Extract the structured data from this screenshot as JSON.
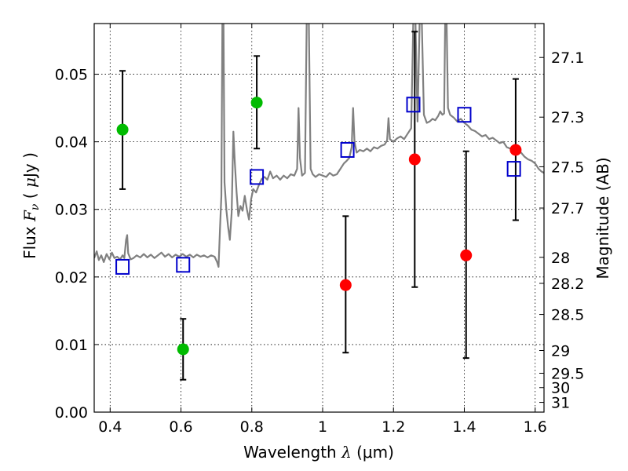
{
  "chart_data": {
    "type": "scatter",
    "title": "",
    "xlabel": "Wavelength  λ (μm)",
    "ylabel": "Flux  Fν  ( μJy )",
    "ylabel_parts": {
      "prefix": "Flux  ",
      "symbol": "F",
      "subscript": "ν",
      "open": "  ( ",
      "unit_sym": "μ",
      "unit": "Jy )"
    },
    "xlabel_parts": {
      "prefix": "Wavelength  ",
      "symbol": "λ",
      "unit": " (μm)"
    },
    "y2label": "Magnitude (AB)",
    "xlim": [
      0.355,
      1.625
    ],
    "ylim": [
      0.0,
      0.0575
    ],
    "grid": true,
    "x_ticks": [
      {
        "v": 0.4,
        "label": "0.4"
      },
      {
        "v": 0.6,
        "label": "0.6"
      },
      {
        "v": 0.8,
        "label": "0.8"
      },
      {
        "v": 1.0,
        "label": "1"
      },
      {
        "v": 1.2,
        "label": "1.2"
      },
      {
        "v": 1.4,
        "label": "1.4"
      },
      {
        "v": 1.6,
        "label": "1.6"
      }
    ],
    "y_ticks": [
      {
        "v": 0.0,
        "label": "0.00"
      },
      {
        "v": 0.01,
        "label": "0.01"
      },
      {
        "v": 0.02,
        "label": "0.02"
      },
      {
        "v": 0.03,
        "label": "0.03"
      },
      {
        "v": 0.04,
        "label": "0.04"
      },
      {
        "v": 0.05,
        "label": "0.05"
      }
    ],
    "mag_ticks": [
      {
        "mag": 27.1,
        "label": "27.1"
      },
      {
        "mag": 27.3,
        "label": "27.3"
      },
      {
        "mag": 27.5,
        "label": "27.5"
      },
      {
        "mag": 27.7,
        "label": "27.7"
      },
      {
        "mag": 28.0,
        "label": "28"
      },
      {
        "mag": 28.2,
        "label": "28.2"
      },
      {
        "mag": 28.5,
        "label": "28.5"
      },
      {
        "mag": 29.0,
        "label": "29"
      },
      {
        "mag": 29.5,
        "label": "29.5"
      },
      {
        "mag": 30.0,
        "label": "30"
      },
      {
        "mag": 31.0,
        "label": "31"
      }
    ],
    "series": [
      {
        "kind": "points-with-errors",
        "color": "#00bb00",
        "points": [
          {
            "x": 0.435,
            "y": 0.0418,
            "lo": 0.033,
            "hi": 0.0505
          },
          {
            "x": 0.606,
            "y": 0.0093,
            "lo": 0.0048,
            "hi": 0.0138
          },
          {
            "x": 0.814,
            "y": 0.0458,
            "lo": 0.039,
            "hi": 0.0527
          }
        ]
      },
      {
        "kind": "points-with-errors",
        "color": "#ff0000",
        "points": [
          {
            "x": 1.065,
            "y": 0.0188,
            "lo": 0.0088,
            "hi": 0.029
          },
          {
            "x": 1.26,
            "y": 0.0374,
            "lo": 0.0185,
            "hi": 0.0563
          },
          {
            "x": 1.405,
            "y": 0.0232,
            "lo": 0.008,
            "hi": 0.0386
          },
          {
            "x": 1.545,
            "y": 0.0388,
            "lo": 0.0284,
            "hi": 0.0493
          }
        ]
      },
      {
        "kind": "open-squares",
        "color": "#0000cc",
        "points": [
          {
            "x": 0.435,
            "y": 0.0215
          },
          {
            "x": 0.606,
            "y": 0.0218
          },
          {
            "x": 0.814,
            "y": 0.0348
          },
          {
            "x": 1.07,
            "y": 0.0388
          },
          {
            "x": 1.256,
            "y": 0.0455
          },
          {
            "x": 1.4,
            "y": 0.044
          },
          {
            "x": 1.54,
            "y": 0.036
          }
        ]
      },
      {
        "kind": "model-spectrum",
        "color": "#808080",
        "points": [
          [
            0.355,
            0.0228
          ],
          [
            0.362,
            0.0238
          ],
          [
            0.368,
            0.0225
          ],
          [
            0.375,
            0.0232
          ],
          [
            0.382,
            0.0222
          ],
          [
            0.39,
            0.0234
          ],
          [
            0.398,
            0.0226
          ],
          [
            0.405,
            0.0236
          ],
          [
            0.412,
            0.0228
          ],
          [
            0.42,
            0.023
          ],
          [
            0.428,
            0.0226
          ],
          [
            0.435,
            0.0232
          ],
          [
            0.44,
            0.0228
          ],
          [
            0.445,
            0.0255
          ],
          [
            0.448,
            0.0262
          ],
          [
            0.451,
            0.0235
          ],
          [
            0.458,
            0.0226
          ],
          [
            0.466,
            0.0228
          ],
          [
            0.475,
            0.0232
          ],
          [
            0.485,
            0.0229
          ],
          [
            0.495,
            0.0234
          ],
          [
            0.505,
            0.0229
          ],
          [
            0.515,
            0.0233
          ],
          [
            0.525,
            0.0228
          ],
          [
            0.535,
            0.0232
          ],
          [
            0.545,
            0.0236
          ],
          [
            0.555,
            0.023
          ],
          [
            0.565,
            0.0234
          ],
          [
            0.575,
            0.0229
          ],
          [
            0.585,
            0.0233
          ],
          [
            0.595,
            0.023
          ],
          [
            0.605,
            0.0234
          ],
          [
            0.615,
            0.023
          ],
          [
            0.625,
            0.0233
          ],
          [
            0.635,
            0.0229
          ],
          [
            0.645,
            0.0233
          ],
          [
            0.655,
            0.023
          ],
          [
            0.665,
            0.0232
          ],
          [
            0.675,
            0.0229
          ],
          [
            0.685,
            0.0232
          ],
          [
            0.695,
            0.023
          ],
          [
            0.702,
            0.0222
          ],
          [
            0.706,
            0.0215
          ],
          [
            0.71,
            0.027
          ],
          [
            0.714,
            0.032
          ],
          [
            0.717,
            0.058
          ],
          [
            0.72,
            0.058
          ],
          [
            0.723,
            0.034
          ],
          [
            0.728,
            0.03
          ],
          [
            0.733,
            0.0275
          ],
          [
            0.738,
            0.0255
          ],
          [
            0.743,
            0.0295
          ],
          [
            0.748,
            0.0415
          ],
          [
            0.752,
            0.037
          ],
          [
            0.757,
            0.0325
          ],
          [
            0.762,
            0.029
          ],
          [
            0.768,
            0.0305
          ],
          [
            0.774,
            0.0298
          ],
          [
            0.78,
            0.032
          ],
          [
            0.786,
            0.03
          ],
          [
            0.792,
            0.0285
          ],
          [
            0.798,
            0.0315
          ],
          [
            0.804,
            0.033
          ],
          [
            0.812,
            0.0325
          ],
          [
            0.82,
            0.0336
          ],
          [
            0.828,
            0.0345
          ],
          [
            0.836,
            0.0348
          ],
          [
            0.844,
            0.0344
          ],
          [
            0.852,
            0.0356
          ],
          [
            0.86,
            0.0346
          ],
          [
            0.87,
            0.035
          ],
          [
            0.88,
            0.0344
          ],
          [
            0.89,
            0.035
          ],
          [
            0.9,
            0.0346
          ],
          [
            0.91,
            0.0352
          ],
          [
            0.92,
            0.035
          ],
          [
            0.928,
            0.036
          ],
          [
            0.932,
            0.045
          ],
          [
            0.936,
            0.0376
          ],
          [
            0.942,
            0.035
          ],
          [
            0.95,
            0.0354
          ],
          [
            0.955,
            0.058
          ],
          [
            0.961,
            0.058
          ],
          [
            0.966,
            0.036
          ],
          [
            0.972,
            0.0352
          ],
          [
            0.98,
            0.0348
          ],
          [
            0.99,
            0.0352
          ],
          [
            1.0,
            0.035
          ],
          [
            1.01,
            0.0348
          ],
          [
            1.02,
            0.0354
          ],
          [
            1.03,
            0.035
          ],
          [
            1.04,
            0.0352
          ],
          [
            1.05,
            0.036
          ],
          [
            1.06,
            0.0368
          ],
          [
            1.068,
            0.0372
          ],
          [
            1.075,
            0.0376
          ],
          [
            1.082,
            0.0392
          ],
          [
            1.086,
            0.045
          ],
          [
            1.09,
            0.04
          ],
          [
            1.096,
            0.0384
          ],
          [
            1.105,
            0.0388
          ],
          [
            1.115,
            0.0386
          ],
          [
            1.125,
            0.039
          ],
          [
            1.135,
            0.0386
          ],
          [
            1.145,
            0.0392
          ],
          [
            1.155,
            0.039
          ],
          [
            1.165,
            0.0394
          ],
          [
            1.175,
            0.0396
          ],
          [
            1.182,
            0.0402
          ],
          [
            1.186,
            0.0435
          ],
          [
            1.19,
            0.0404
          ],
          [
            1.2,
            0.04
          ],
          [
            1.21,
            0.0405
          ],
          [
            1.22,
            0.0408
          ],
          [
            1.23,
            0.0404
          ],
          [
            1.24,
            0.0412
          ],
          [
            1.25,
            0.042
          ],
          [
            1.256,
            0.058
          ],
          [
            1.262,
            0.058
          ],
          [
            1.268,
            0.043
          ],
          [
            1.274,
            0.058
          ],
          [
            1.28,
            0.058
          ],
          [
            1.286,
            0.044
          ],
          [
            1.294,
            0.0428
          ],
          [
            1.302,
            0.043
          ],
          [
            1.31,
            0.0434
          ],
          [
            1.318,
            0.0432
          ],
          [
            1.326,
            0.0438
          ],
          [
            1.332,
            0.0445
          ],
          [
            1.338,
            0.044
          ],
          [
            1.343,
            0.0442
          ],
          [
            1.346,
            0.058
          ],
          [
            1.35,
            0.058
          ],
          [
            1.354,
            0.045
          ],
          [
            1.36,
            0.044
          ],
          [
            1.37,
            0.0436
          ],
          [
            1.38,
            0.043
          ],
          [
            1.39,
            0.0434
          ],
          [
            1.4,
            0.0428
          ],
          [
            1.41,
            0.0424
          ],
          [
            1.42,
            0.0418
          ],
          [
            1.43,
            0.0416
          ],
          [
            1.44,
            0.0412
          ],
          [
            1.45,
            0.0408
          ],
          [
            1.46,
            0.041
          ],
          [
            1.47,
            0.0404
          ],
          [
            1.48,
            0.0406
          ],
          [
            1.49,
            0.0402
          ],
          [
            1.5,
            0.0398
          ],
          [
            1.51,
            0.04
          ],
          [
            1.52,
            0.0392
          ],
          [
            1.53,
            0.039
          ],
          [
            1.54,
            0.0388
          ],
          [
            1.55,
            0.039
          ],
          [
            1.56,
            0.0384
          ],
          [
            1.57,
            0.0378
          ],
          [
            1.58,
            0.0374
          ],
          [
            1.59,
            0.0372
          ],
          [
            1.6,
            0.0368
          ],
          [
            1.61,
            0.036
          ],
          [
            1.618,
            0.0356
          ],
          [
            1.625,
            0.0354
          ]
        ]
      }
    ]
  }
}
